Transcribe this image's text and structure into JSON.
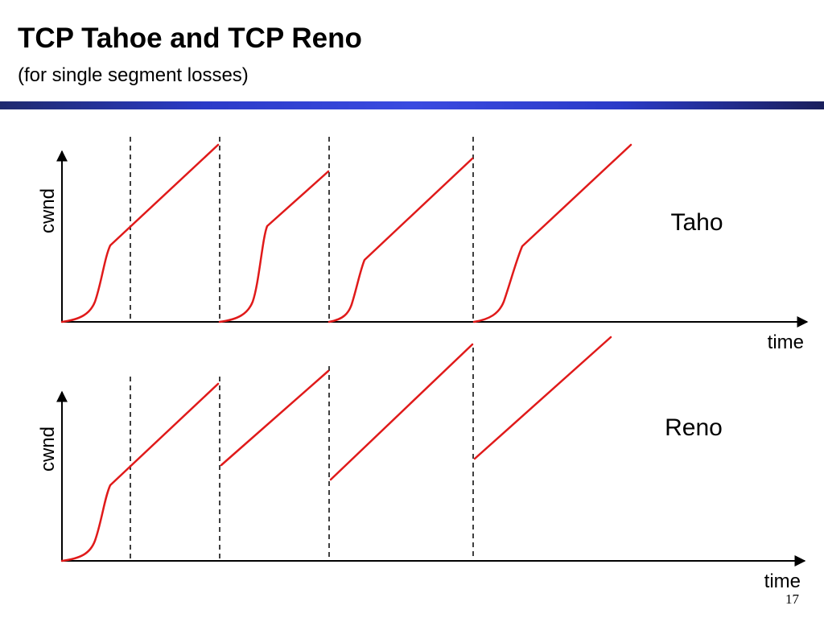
{
  "title": "TCP Tahoe and TCP Reno",
  "subtitle": "(for single segment losses)",
  "page_number": "17",
  "colors": {
    "curve": "#e01a1a",
    "title_bar": "#2b3bc8"
  },
  "panels": [
    {
      "label": "Taho",
      "y_axis_label": "cwnd",
      "x_axis_label": "time"
    },
    {
      "label": "Reno",
      "y_axis_label": "cwnd",
      "x_axis_label": "time"
    }
  ]
}
